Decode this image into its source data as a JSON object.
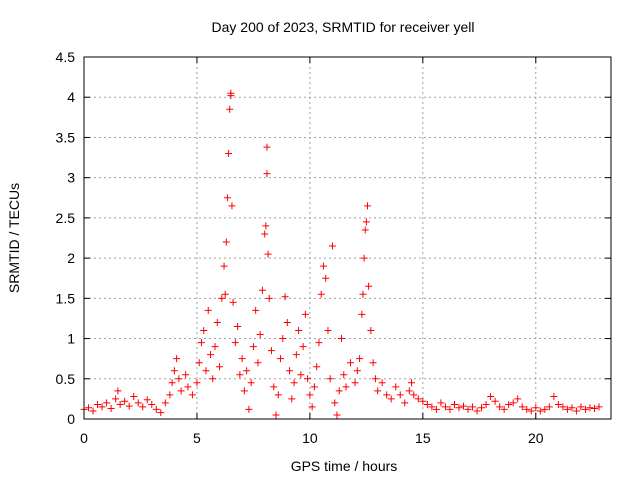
{
  "chart_data": {
    "type": "scatter",
    "title": "Day 200 of 2023, SRMTID for receiver yell",
    "xlabel": "GPS time / hours",
    "ylabel": "SRMTID / TECUs",
    "xlim": [
      0,
      23.33
    ],
    "ylim": [
      0,
      4.5
    ],
    "xticks": [
      0,
      5,
      10,
      15,
      20
    ],
    "xtick_labels": [
      "0",
      "5",
      "10",
      "15",
      "20"
    ],
    "yticks": [
      0,
      0.5,
      1,
      1.5,
      2,
      2.5,
      3,
      3.5,
      4,
      4.5
    ],
    "ytick_labels": [
      "0",
      "0.5",
      "1",
      "1.5",
      "2",
      "2.5",
      "3",
      "3.5",
      "4",
      "4.5"
    ],
    "grid": true,
    "marker": "+",
    "color": "#ff0000",
    "series": [
      {
        "name": "SRMTID",
        "points": [
          [
            0.0,
            0.12
          ],
          [
            0.2,
            0.14
          ],
          [
            0.4,
            0.1
          ],
          [
            0.6,
            0.18
          ],
          [
            0.8,
            0.15
          ],
          [
            1.0,
            0.2
          ],
          [
            1.2,
            0.13
          ],
          [
            1.4,
            0.25
          ],
          [
            1.5,
            0.35
          ],
          [
            1.6,
            0.18
          ],
          [
            1.8,
            0.22
          ],
          [
            2.0,
            0.16
          ],
          [
            2.2,
            0.28
          ],
          [
            2.4,
            0.2
          ],
          [
            2.6,
            0.15
          ],
          [
            2.8,
            0.24
          ],
          [
            3.0,
            0.18
          ],
          [
            3.2,
            0.12
          ],
          [
            3.4,
            0.08
          ],
          [
            3.6,
            0.2
          ],
          [
            3.8,
            0.3
          ],
          [
            3.9,
            0.45
          ],
          [
            4.0,
            0.6
          ],
          [
            4.1,
            0.75
          ],
          [
            4.2,
            0.5
          ],
          [
            4.3,
            0.35
          ],
          [
            4.5,
            0.55
          ],
          [
            4.6,
            0.4
          ],
          [
            4.8,
            0.3
          ],
          [
            5.0,
            0.45
          ],
          [
            5.1,
            0.7
          ],
          [
            5.2,
            0.95
          ],
          [
            5.3,
            1.1
          ],
          [
            5.4,
            0.6
          ],
          [
            5.5,
            1.35
          ],
          [
            5.6,
            0.8
          ],
          [
            5.7,
            0.5
          ],
          [
            5.8,
            0.9
          ],
          [
            5.9,
            1.2
          ],
          [
            6.0,
            0.65
          ],
          [
            6.1,
            1.5
          ],
          [
            6.2,
            1.9
          ],
          [
            6.25,
            1.55
          ],
          [
            6.3,
            2.2
          ],
          [
            6.35,
            2.75
          ],
          [
            6.4,
            3.3
          ],
          [
            6.45,
            3.85
          ],
          [
            6.5,
            4.02
          ],
          [
            6.5,
            4.05
          ],
          [
            6.55,
            2.65
          ],
          [
            6.6,
            1.45
          ],
          [
            6.7,
            0.95
          ],
          [
            6.8,
            1.15
          ],
          [
            6.9,
            0.55
          ],
          [
            7.0,
            0.75
          ],
          [
            7.1,
            0.35
          ],
          [
            7.2,
            0.6
          ],
          [
            7.3,
            0.12
          ],
          [
            7.4,
            0.45
          ],
          [
            7.5,
            0.9
          ],
          [
            7.6,
            1.35
          ],
          [
            7.7,
            0.7
          ],
          [
            7.8,
            1.05
          ],
          [
            7.9,
            1.6
          ],
          [
            8.0,
            2.3
          ],
          [
            8.05,
            2.4
          ],
          [
            8.1,
            3.05
          ],
          [
            8.1,
            3.38
          ],
          [
            8.15,
            2.05
          ],
          [
            8.2,
            1.5
          ],
          [
            8.3,
            0.85
          ],
          [
            8.4,
            0.4
          ],
          [
            8.5,
            0.05
          ],
          [
            8.6,
            0.3
          ],
          [
            8.7,
            0.75
          ],
          [
            8.8,
            1.0
          ],
          [
            8.9,
            1.52
          ],
          [
            9.0,
            1.2
          ],
          [
            9.1,
            0.6
          ],
          [
            9.2,
            0.25
          ],
          [
            9.3,
            0.45
          ],
          [
            9.4,
            0.8
          ],
          [
            9.5,
            1.1
          ],
          [
            9.6,
            0.55
          ],
          [
            9.7,
            0.9
          ],
          [
            9.8,
            1.3
          ],
          [
            9.9,
            0.5
          ],
          [
            10.0,
            0.3
          ],
          [
            10.1,
            0.15
          ],
          [
            10.2,
            0.4
          ],
          [
            10.3,
            0.65
          ],
          [
            10.4,
            0.95
          ],
          [
            10.5,
            1.55
          ],
          [
            10.6,
            1.9
          ],
          [
            10.7,
            1.75
          ],
          [
            10.8,
            1.1
          ],
          [
            10.9,
            0.5
          ],
          [
            11.0,
            2.15
          ],
          [
            11.1,
            0.2
          ],
          [
            11.2,
            0.05
          ],
          [
            11.3,
            0.35
          ],
          [
            11.4,
            1.0
          ],
          [
            11.5,
            0.55
          ],
          [
            11.6,
            0.4
          ],
          [
            11.8,
            0.7
          ],
          [
            12.0,
            0.45
          ],
          [
            12.1,
            0.6
          ],
          [
            12.2,
            0.75
          ],
          [
            12.3,
            1.3
          ],
          [
            12.35,
            1.55
          ],
          [
            12.4,
            2.0
          ],
          [
            12.45,
            2.35
          ],
          [
            12.5,
            2.45
          ],
          [
            12.55,
            2.65
          ],
          [
            12.6,
            1.65
          ],
          [
            12.7,
            1.1
          ],
          [
            12.8,
            0.7
          ],
          [
            12.9,
            0.5
          ],
          [
            13.0,
            0.35
          ],
          [
            13.2,
            0.45
          ],
          [
            13.4,
            0.3
          ],
          [
            13.6,
            0.25
          ],
          [
            13.8,
            0.4
          ],
          [
            14.0,
            0.3
          ],
          [
            14.2,
            0.2
          ],
          [
            14.4,
            0.35
          ],
          [
            14.5,
            0.45
          ],
          [
            14.6,
            0.3
          ],
          [
            14.8,
            0.25
          ],
          [
            15.0,
            0.22
          ],
          [
            15.2,
            0.18
          ],
          [
            15.4,
            0.15
          ],
          [
            15.6,
            0.12
          ],
          [
            15.8,
            0.2
          ],
          [
            16.0,
            0.15
          ],
          [
            16.2,
            0.12
          ],
          [
            16.4,
            0.18
          ],
          [
            16.6,
            0.14
          ],
          [
            16.8,
            0.16
          ],
          [
            17.0,
            0.12
          ],
          [
            17.2,
            0.15
          ],
          [
            17.4,
            0.1
          ],
          [
            17.6,
            0.14
          ],
          [
            17.8,
            0.18
          ],
          [
            18.0,
            0.28
          ],
          [
            18.2,
            0.22
          ],
          [
            18.4,
            0.15
          ],
          [
            18.6,
            0.12
          ],
          [
            18.8,
            0.18
          ],
          [
            19.0,
            0.2
          ],
          [
            19.2,
            0.25
          ],
          [
            19.4,
            0.15
          ],
          [
            19.6,
            0.12
          ],
          [
            19.8,
            0.1
          ],
          [
            20.0,
            0.14
          ],
          [
            20.2,
            0.1
          ],
          [
            20.4,
            0.12
          ],
          [
            20.6,
            0.15
          ],
          [
            20.8,
            0.28
          ],
          [
            21.0,
            0.18
          ],
          [
            21.2,
            0.15
          ],
          [
            21.4,
            0.12
          ],
          [
            21.6,
            0.14
          ],
          [
            21.8,
            0.1
          ],
          [
            22.0,
            0.15
          ],
          [
            22.2,
            0.12
          ],
          [
            22.4,
            0.14
          ],
          [
            22.6,
            0.13
          ],
          [
            22.8,
            0.15
          ]
        ]
      }
    ]
  }
}
